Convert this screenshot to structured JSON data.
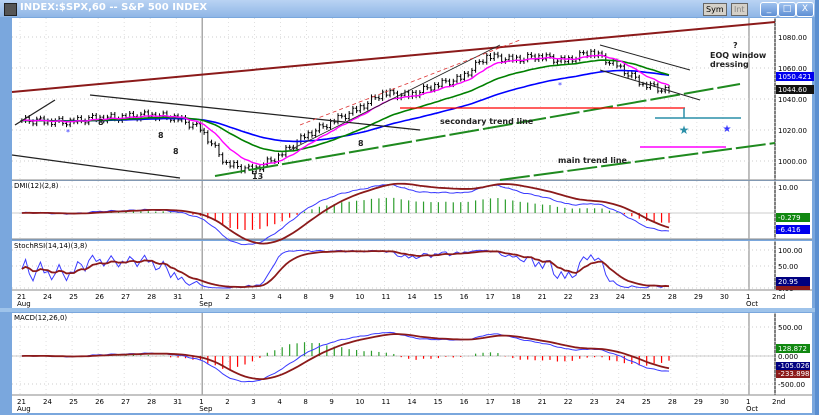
{
  "window": {
    "title": "INDEX:$SPX,60 -- S&P 500 INDEX",
    "buttons": {
      "sym": "Sym",
      "int": "Int",
      "minimize": "_",
      "maximize": "□",
      "close": "X"
    }
  },
  "annotations": {
    "question": "?",
    "eoq_line1": "EOQ window",
    "eoq_line2": "dressing",
    "secondary": "secondary trend line",
    "main": "main trend line",
    "count_a": "8",
    "count_b": "8",
    "count_c": "8",
    "count_d": "8",
    "count_e": "13"
  },
  "colors": {
    "price": "#000000",
    "ma_fast": "#ff00ff",
    "ma_mid": "#008000",
    "ma_slow": "#0000ff",
    "trend_top": "#8b1a1a",
    "trend": "#1f8a1f",
    "hist_up": "#2e9e2e",
    "hist_down": "#ff0000",
    "signal": "#8b1a1a",
    "raw": "#3a3aff"
  },
  "chart_data": [
    {
      "type": "ohlc",
      "panel": "price",
      "x_ticks": [
        "21",
        "24",
        "25",
        "26",
        "27",
        "28",
        "31",
        "1",
        "2",
        "3",
        "4",
        "8",
        "9",
        "10",
        "11",
        "14",
        "15",
        "16",
        "17",
        "18",
        "21",
        "22",
        "23",
        "24",
        "25",
        "28",
        "29",
        "30",
        "1",
        "2nd"
      ],
      "month_labels": {
        "0": "Aug",
        "7": "Sep",
        "28": "Oct"
      },
      "close": [
        1026,
        1025,
        1028,
        1028,
        1030,
        1028,
        1021,
        998,
        994,
        1003,
        1016,
        1025,
        1033,
        1044,
        1042,
        1049,
        1053,
        1068,
        1065,
        1068,
        1064,
        1071,
        1061,
        1050,
        1044.6
      ],
      "ylim": [
        994,
        1086
      ],
      "y_ticks": [
        "1080.00",
        "1060.00",
        "1040.00",
        "1020.00",
        "1000.00"
      ],
      "y_tick_values": [
        1080,
        1060,
        1040,
        1020,
        1000
      ],
      "last_labels": {
        "ma": "1050.421",
        "close": "1044.60"
      },
      "grid": true
    },
    {
      "type": "bar+line",
      "panel": "oscillator",
      "label": "DMI(12)(2,8)",
      "y_ticks": [
        "10.00"
      ],
      "ylim": [
        -14,
        12
      ],
      "last_labels": {
        "signal": "-0.279",
        "raw": "-6.416"
      }
    },
    {
      "type": "line",
      "panel": "stochastic",
      "label": "StochRSI(14,14)(3,8)",
      "y_ticks": [
        "100.00",
        "50.00",
        "0.00"
      ],
      "ylim": [
        0,
        100
      ],
      "last_labels": {
        "k": "20.95",
        "d": ""
      }
    },
    {
      "type": "bar+line",
      "panel": "macd",
      "label": "MACD(12,26,0)",
      "y_ticks": [
        "500.00",
        "0.000",
        "-500.00"
      ],
      "ylim": [
        -650,
        650
      ],
      "last_labels": {
        "hist": "128.872",
        "macd": "-105.026",
        "signal": "-233.898"
      }
    }
  ]
}
